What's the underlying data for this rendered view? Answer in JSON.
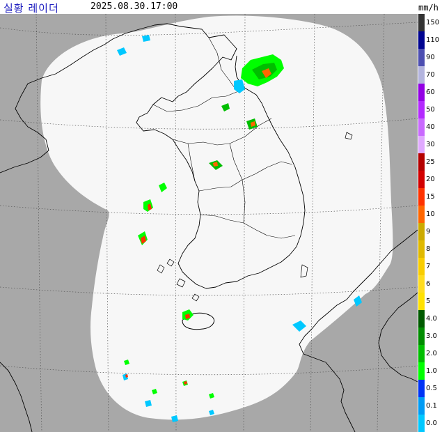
{
  "header": {
    "title": "실황 레이더",
    "timestamp": "2025.08.30.17:00",
    "unit": "mm/h"
  },
  "colors": {
    "outside_coverage": "#a8a8a8",
    "coverage_area": "#f7f7f7",
    "coastline": "#000000",
    "grid": "#555555"
  },
  "legend": [
    {
      "label": "150",
      "color": "#333333"
    },
    {
      "label": "110",
      "color": "#000390"
    },
    {
      "label": "90",
      "color": "#4c4eb1"
    },
    {
      "label": "70",
      "color": "#b3b4de"
    },
    {
      "label": "60",
      "color": "#9300e4"
    },
    {
      "label": "50",
      "color": "#b329ff"
    },
    {
      "label": "40",
      "color": "#c969ff"
    },
    {
      "label": "30",
      "color": "#e0a9ff"
    },
    {
      "label": "25",
      "color": "#b40000"
    },
    {
      "label": "20",
      "color": "#d20000"
    },
    {
      "label": "15",
      "color": "#ff3200"
    },
    {
      "label": "10",
      "color": "#ff6600"
    },
    {
      "label": "9",
      "color": "#ccaa00"
    },
    {
      "label": "8",
      "color": "#e0b900"
    },
    {
      "label": "7",
      "color": "#f9cd00"
    },
    {
      "label": "6",
      "color": "#ffdc1f"
    },
    {
      "label": "5",
      "color": "#ffe100"
    },
    {
      "label": "4.0",
      "color": "#005a00"
    },
    {
      "label": "3.0",
      "color": "#008c00"
    },
    {
      "label": "2.0",
      "color": "#00be00"
    },
    {
      "label": "1.0",
      "color": "#00ff00"
    },
    {
      "label": "0.5",
      "color": "#0033f5"
    },
    {
      "label": "0.1",
      "color": "#009bf5"
    },
    {
      "label": "0.0",
      "color": "#00c8ff"
    }
  ]
}
